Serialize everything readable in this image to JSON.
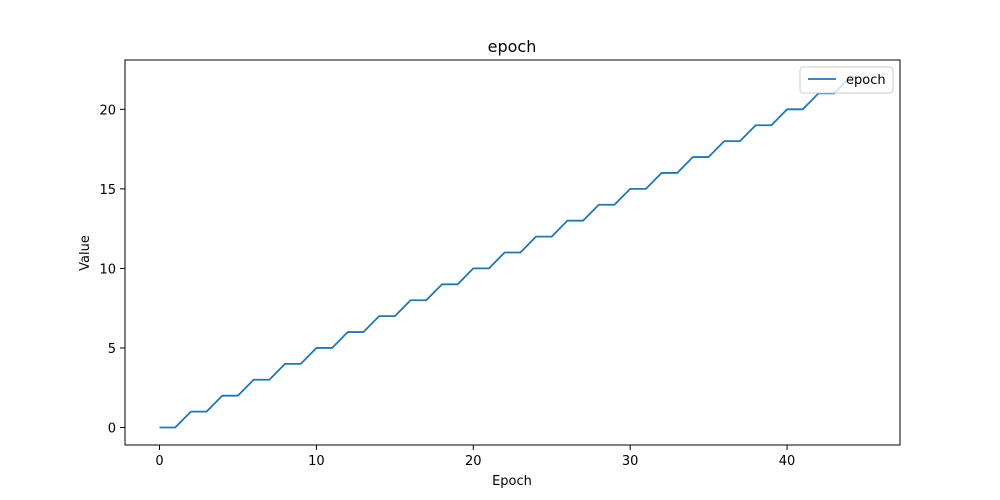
{
  "chart_data": {
    "type": "line",
    "title": "epoch",
    "xlabel": "Epoch",
    "ylabel": "Value",
    "xlim": [
      -2.2,
      47.2
    ],
    "ylim": [
      -1.1,
      23.1
    ],
    "xticks": [
      0,
      10,
      20,
      30,
      40
    ],
    "yticks": [
      0,
      5,
      10,
      15,
      20
    ],
    "grid": false,
    "legend_position": "top-right",
    "series": [
      {
        "name": "epoch",
        "color": "#1f77b4",
        "x": [
          0,
          1,
          2,
          3,
          4,
          5,
          6,
          7,
          8,
          9,
          10,
          11,
          12,
          13,
          14,
          15,
          16,
          17,
          18,
          19,
          20,
          21,
          22,
          23,
          24,
          25,
          26,
          27,
          28,
          29,
          30,
          31,
          32,
          33,
          34,
          35,
          36,
          37,
          38,
          39,
          40,
          41,
          42,
          43,
          44,
          45
        ],
        "values": [
          0,
          0,
          1,
          1,
          2,
          2,
          3,
          3,
          4,
          4,
          5,
          5,
          6,
          6,
          7,
          7,
          8,
          8,
          9,
          9,
          10,
          10,
          11,
          11,
          12,
          12,
          13,
          13,
          14,
          14,
          15,
          15,
          16,
          16,
          17,
          17,
          18,
          18,
          19,
          19,
          20,
          20,
          21,
          21,
          22,
          22
        ]
      }
    ]
  }
}
